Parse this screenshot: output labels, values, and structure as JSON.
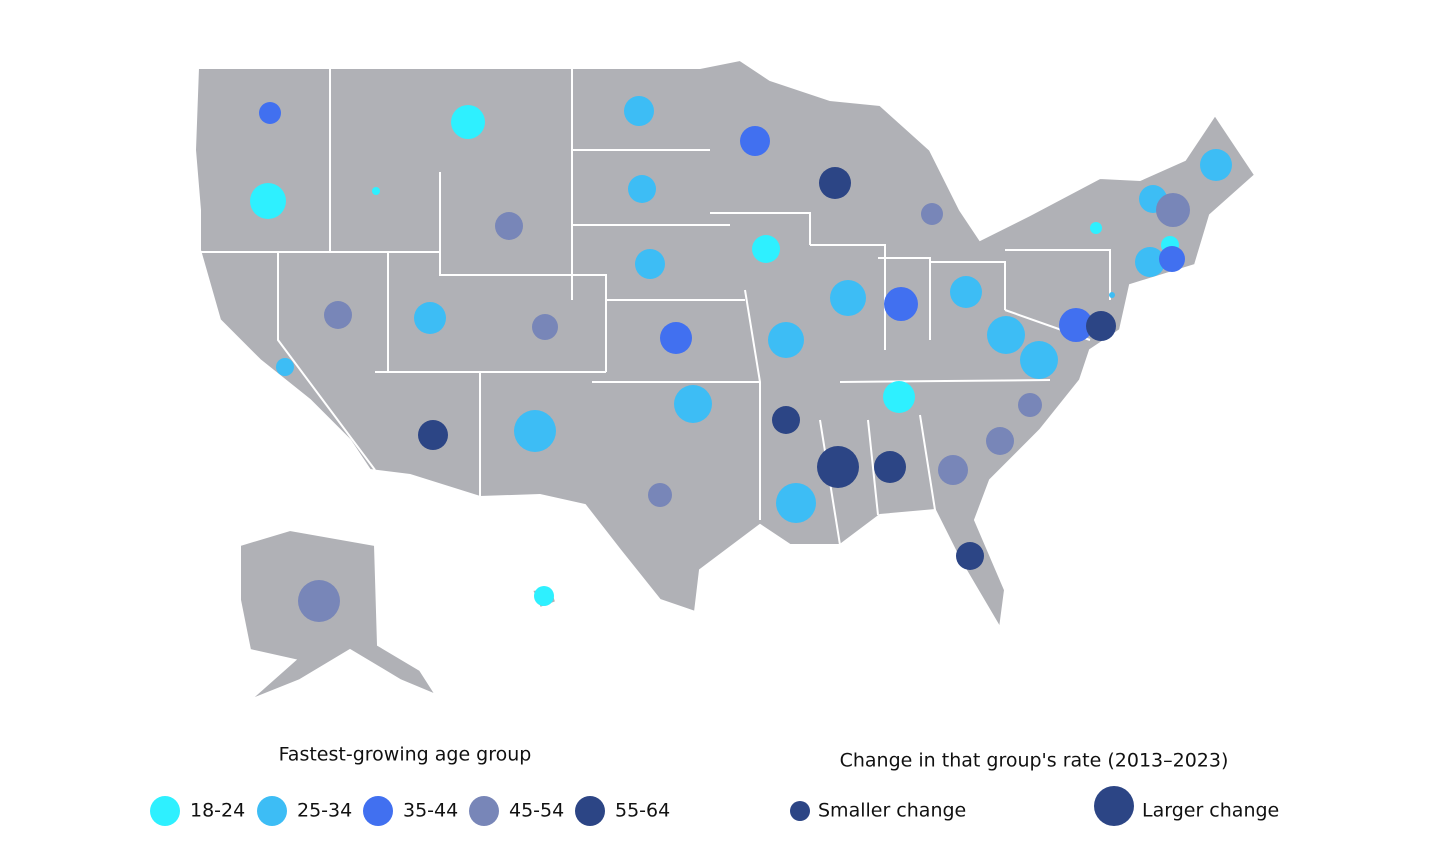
{
  "legend_title": "Fastest-growing age group",
  "groups": [
    {
      "label": "18-24",
      "color": "#2ef0ff"
    },
    {
      "label": "25-34",
      "color": "#3dbdf5"
    },
    {
      "label": "35-44",
      "color": "#4170f0"
    },
    {
      "label": "45-54",
      "color": "#7886b8"
    },
    {
      "label": "55-64",
      "color": "#2c4585"
    }
  ],
  "size_legend_title": "Change in that group's rate (2013–2023)",
  "size_legend_small": "Smaller change",
  "size_legend_large": "Larger change",
  "bubbles": [
    {
      "group": 2,
      "change": 11
    },
    {
      "group": 0,
      "change": 17
    },
    {
      "group": 1,
      "change": 15
    },
    {
      "group": 2,
      "change": 15
    },
    {
      "group": 0,
      "change": 18
    },
    {
      "group": 0,
      "change": 4
    },
    {
      "group": 4,
      "change": 16
    },
    {
      "group": 1,
      "change": 14
    },
    {
      "group": 3,
      "change": 14
    },
    {
      "group": 1,
      "change": 16
    },
    {
      "group": 1,
      "change": 14
    },
    {
      "group": 3,
      "change": 17
    },
    {
      "group": 0,
      "change": 6
    },
    {
      "group": 3,
      "change": 11
    },
    {
      "group": 0,
      "change": 14
    },
    {
      "group": 0,
      "change": 9
    },
    {
      "group": 1,
      "change": 15
    },
    {
      "group": 1,
      "change": 15
    },
    {
      "group": 2,
      "change": 13
    },
    {
      "group": 3,
      "change": 14
    },
    {
      "group": 1,
      "change": 16
    },
    {
      "group": 3,
      "change": 13
    },
    {
      "group": 1,
      "change": 18
    },
    {
      "group": 2,
      "change": 17
    },
    {
      "group": 1,
      "change": 16
    },
    {
      "group": 1,
      "change": 3
    },
    {
      "group": 1,
      "change": 19
    },
    {
      "group": 2,
      "change": 17
    },
    {
      "group": 4,
      "change": 15
    },
    {
      "group": 2,
      "change": 16
    },
    {
      "group": 1,
      "change": 18
    },
    {
      "group": 1,
      "change": 19
    },
    {
      "group": 1,
      "change": 9
    },
    {
      "group": 0,
      "change": 16
    },
    {
      "group": 3,
      "change": 12
    },
    {
      "group": 1,
      "change": 19
    },
    {
      "group": 4,
      "change": 14
    },
    {
      "group": 4,
      "change": 15
    },
    {
      "group": 1,
      "change": 21
    },
    {
      "group": 3,
      "change": 14
    },
    {
      "group": 4,
      "change": 21
    },
    {
      "group": 4,
      "change": 16
    },
    {
      "group": 3,
      "change": 15
    },
    {
      "group": 3,
      "change": 12
    },
    {
      "group": 1,
      "change": 20
    },
    {
      "group": 4,
      "change": 14
    },
    {
      "group": 3,
      "change": 21
    },
    {
      "group": 0,
      "change": 10
    }
  ]
}
